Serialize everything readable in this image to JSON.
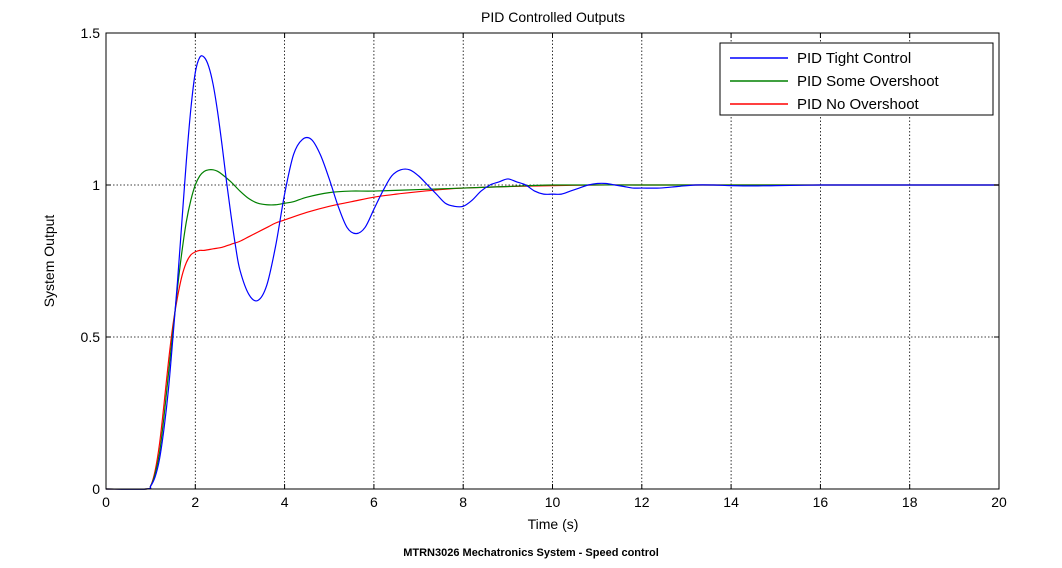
{
  "caption": "MTRN3026 Mechatronics System - Speed control",
  "chart_data": {
    "type": "line",
    "title": "PID Controlled Outputs",
    "xlabel": "Time (s)",
    "ylabel": "System Output",
    "xlim": [
      0,
      20
    ],
    "ylim": [
      0,
      1.5
    ],
    "xticks": [
      0,
      2,
      4,
      6,
      8,
      10,
      12,
      14,
      16,
      18,
      20
    ],
    "yticks": [
      0,
      0.5,
      1,
      1.5
    ],
    "xtick_labels": [
      "0",
      "2",
      "4",
      "6",
      "8",
      "10",
      "12",
      "14",
      "16",
      "18",
      "20"
    ],
    "ytick_labels": [
      "0",
      "0.5",
      "1",
      "1.5"
    ],
    "grid": true,
    "legend_position": "top-right",
    "series": [
      {
        "name": "PID Tight Control",
        "color": "#0000ff",
        "x": [
          0,
          0.9,
          1.0,
          1.1,
          1.2,
          1.3,
          1.4,
          1.5,
          1.6,
          1.7,
          1.8,
          1.9,
          2.0,
          2.1,
          2.2,
          2.3,
          2.4,
          2.5,
          2.6,
          2.7,
          2.8,
          2.9,
          3.0,
          3.2,
          3.4,
          3.6,
          3.8,
          4.0,
          4.2,
          4.4,
          4.6,
          4.8,
          5.0,
          5.2,
          5.4,
          5.6,
          5.8,
          6.0,
          6.2,
          6.4,
          6.6,
          6.8,
          7.0,
          7.2,
          7.4,
          7.6,
          7.8,
          8.0,
          8.2,
          8.4,
          8.6,
          8.8,
          9.0,
          9.2,
          9.4,
          9.6,
          9.8,
          10.0,
          10.2,
          10.4,
          10.6,
          10.8,
          11.0,
          11.2,
          11.4,
          11.6,
          11.8,
          12.0,
          12.4,
          12.8,
          13.2,
          13.6,
          14.0,
          14.5,
          15.0,
          16.0,
          17.0,
          18.0,
          19.0,
          20.0
        ],
        "y": [
          0,
          0,
          0.01,
          0.04,
          0.1,
          0.2,
          0.33,
          0.5,
          0.68,
          0.88,
          1.08,
          1.25,
          1.37,
          1.42,
          1.42,
          1.39,
          1.33,
          1.24,
          1.13,
          1.01,
          0.9,
          0.8,
          0.72,
          0.64,
          0.62,
          0.67,
          0.8,
          0.97,
          1.1,
          1.15,
          1.15,
          1.1,
          1.02,
          0.93,
          0.86,
          0.84,
          0.86,
          0.92,
          0.98,
          1.03,
          1.05,
          1.05,
          1.03,
          1.0,
          0.97,
          0.94,
          0.93,
          0.93,
          0.95,
          0.98,
          1.0,
          1.01,
          1.02,
          1.01,
          1.0,
          0.98,
          0.97,
          0.97,
          0.97,
          0.98,
          0.99,
          1.0,
          1.005,
          1.005,
          1.0,
          0.995,
          0.99,
          0.99,
          0.99,
          0.995,
          1.0,
          1.0,
          0.998,
          0.997,
          0.998,
          1.0,
          1.0,
          1.0,
          1.0,
          1.0
        ]
      },
      {
        "name": "PID Some Overshoot",
        "color": "#008000",
        "x": [
          0,
          0.9,
          1.0,
          1.1,
          1.2,
          1.3,
          1.4,
          1.5,
          1.6,
          1.7,
          1.8,
          1.9,
          2.0,
          2.1,
          2.2,
          2.3,
          2.4,
          2.5,
          2.6,
          2.8,
          3.0,
          3.2,
          3.4,
          3.6,
          3.8,
          4.0,
          4.2,
          4.5,
          5.0,
          5.5,
          6.0,
          7.0,
          8.0,
          9.0,
          10.0,
          12.0,
          14.0,
          16.0,
          18.0,
          20.0
        ],
        "y": [
          0,
          0,
          0.01,
          0.05,
          0.12,
          0.24,
          0.38,
          0.52,
          0.66,
          0.78,
          0.88,
          0.95,
          1.0,
          1.03,
          1.045,
          1.05,
          1.05,
          1.045,
          1.035,
          1.01,
          0.98,
          0.955,
          0.94,
          0.935,
          0.935,
          0.94,
          0.945,
          0.96,
          0.975,
          0.98,
          0.98,
          0.985,
          0.99,
          0.995,
          1.0,
          1.0,
          1.0,
          1.0,
          1.0,
          1.0
        ]
      },
      {
        "name": "PID No Overshoot",
        "color": "#ff0000",
        "x": [
          0,
          0.9,
          1.0,
          1.1,
          1.2,
          1.3,
          1.4,
          1.5,
          1.6,
          1.7,
          1.8,
          1.9,
          2.0,
          2.1,
          2.2,
          2.4,
          2.6,
          2.8,
          3.0,
          3.2,
          3.4,
          3.6,
          3.8,
          4.0,
          4.5,
          5.0,
          5.5,
          6.0,
          6.5,
          7.0,
          7.5,
          8.0,
          9.0,
          10.0,
          11.0,
          12.0,
          14.0,
          16.0,
          18.0,
          20.0
        ],
        "y": [
          0,
          0,
          0.01,
          0.06,
          0.15,
          0.28,
          0.42,
          0.54,
          0.63,
          0.7,
          0.745,
          0.77,
          0.78,
          0.785,
          0.785,
          0.79,
          0.795,
          0.805,
          0.815,
          0.83,
          0.845,
          0.86,
          0.875,
          0.885,
          0.91,
          0.93,
          0.945,
          0.96,
          0.97,
          0.978,
          0.985,
          0.99,
          0.995,
          0.998,
          1.0,
          1.0,
          1.0,
          1.0,
          1.0,
          1.0
        ]
      }
    ]
  }
}
